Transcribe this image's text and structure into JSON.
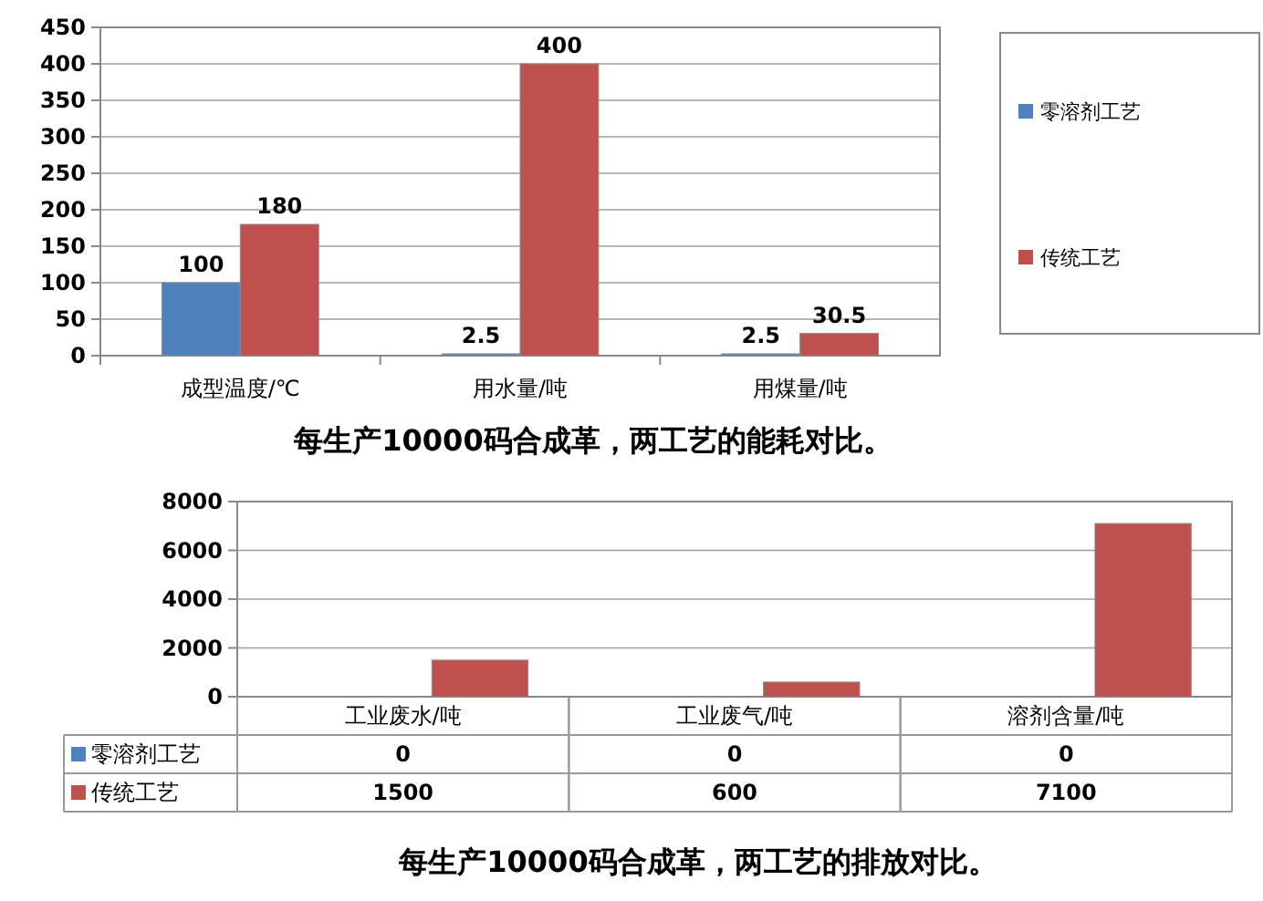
{
  "chart_data": [
    {
      "type": "bar",
      "title": "每生产10000码合成革，两工艺的能耗对比。",
      "categories": [
        "成型温度/℃",
        "用水量/吨",
        "用煤量/吨"
      ],
      "series": [
        {
          "name": "零溶剂工艺",
          "color": "#4f81bd",
          "values": [
            100,
            2.5,
            2.5
          ]
        },
        {
          "name": "传统工艺",
          "color": "#c0504d",
          "values": [
            180,
            400,
            30.5
          ]
        }
      ],
      "ylim": [
        0,
        450
      ],
      "yticks": [
        0,
        50,
        100,
        150,
        200,
        250,
        300,
        350,
        400,
        450
      ],
      "grid": "y",
      "legend": "right",
      "data_labels": true
    },
    {
      "type": "bar",
      "title": "每生产10000码合成革，两工艺的排放对比。",
      "categories": [
        "工业废水/吨",
        "工业废气/吨",
        "溶剂含量/吨"
      ],
      "series": [
        {
          "name": "零溶剂工艺",
          "color": "#4f81bd",
          "values": [
            0,
            0,
            0
          ]
        },
        {
          "name": "传统工艺",
          "color": "#c0504d",
          "values": [
            1500,
            600,
            7100
          ]
        }
      ],
      "ylim": [
        0,
        8000
      ],
      "yticks": [
        0,
        2000,
        4000,
        6000,
        8000
      ],
      "grid": "y",
      "legend": "bottom",
      "data_labels": true
    }
  ]
}
